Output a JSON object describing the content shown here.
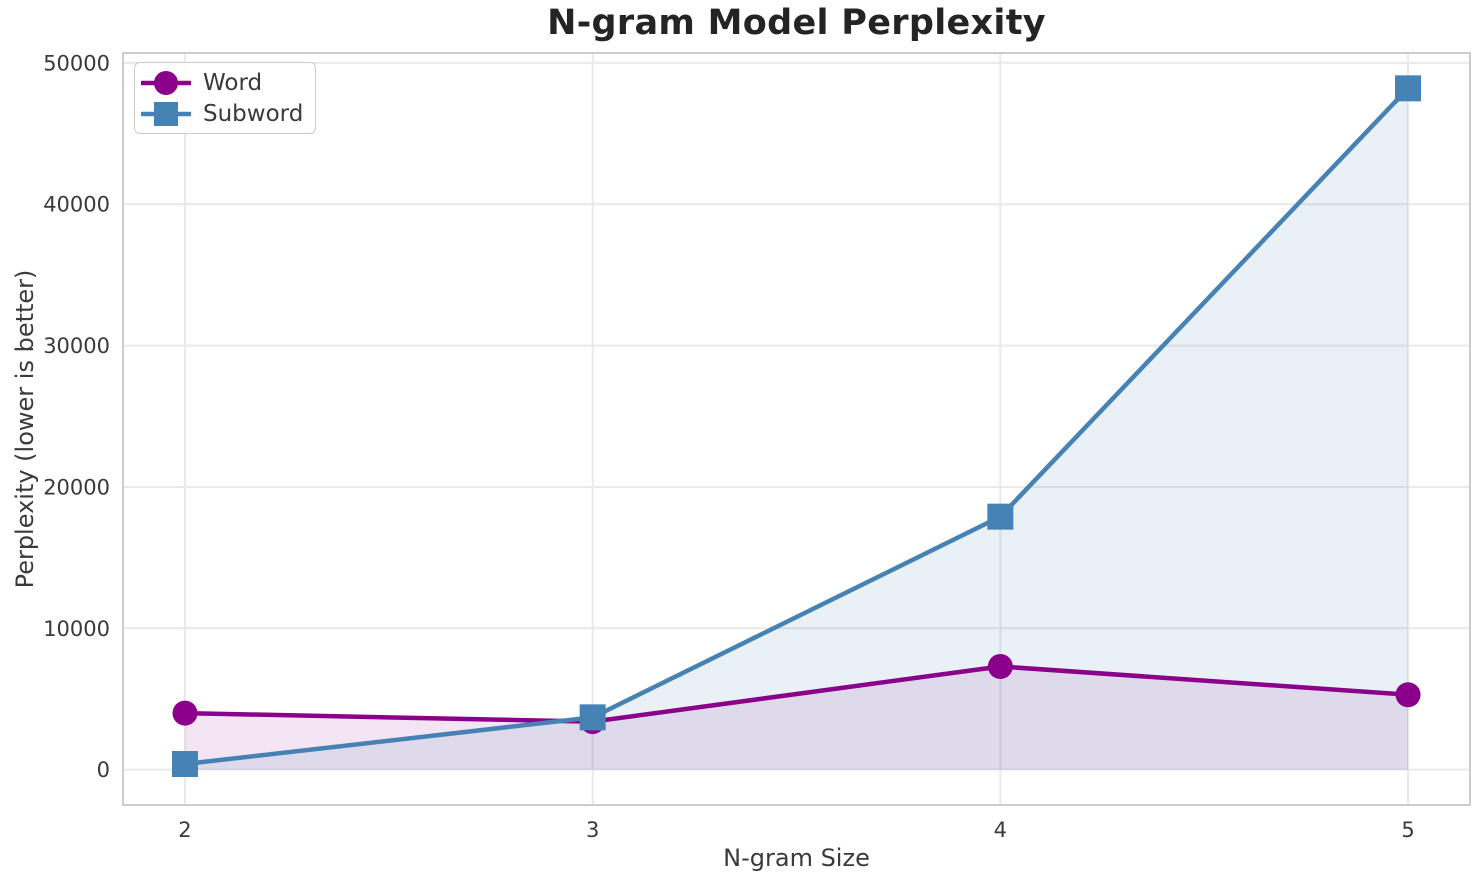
{
  "chart_data": {
    "type": "line",
    "title": "N-gram Model Perplexity",
    "xlabel": "N-gram Size",
    "ylabel": "Perplexity (lower is better)",
    "x": [
      2,
      3,
      4,
      5
    ],
    "series": [
      {
        "name": "Word",
        "marker": "circle",
        "color": "#8B008B",
        "fill_opacity": 0.1,
        "values": [
          4000,
          3400,
          7300,
          5300
        ]
      },
      {
        "name": "Subword",
        "marker": "square",
        "color": "#4682B4",
        "fill_opacity": 0.12,
        "values": [
          400,
          3700,
          17900,
          48200
        ]
      }
    ],
    "xticks": {
      "values": [
        2,
        3,
        4,
        5
      ],
      "labels": [
        "2",
        "3",
        "4",
        "5"
      ]
    },
    "yticks": {
      "values": [
        0,
        10000,
        20000,
        30000,
        40000,
        50000
      ],
      "labels": [
        "0",
        "10000",
        "20000",
        "30000",
        "40000",
        "50000"
      ]
    },
    "xlim": [
      1.848,
      5.152
    ],
    "ylim": [
      -2500,
      50700
    ],
    "grid": true,
    "area_fill_baseline": 0,
    "legend_position": "upper left"
  },
  "colors": {
    "background": "#ffffff",
    "grid": "#e9e9e9",
    "spine": "#cccccc",
    "tick_text": "#3a3a3a",
    "title_text": "#242424"
  }
}
